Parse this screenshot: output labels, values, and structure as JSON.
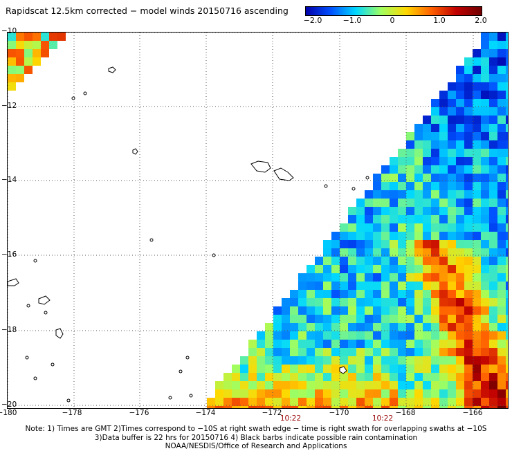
{
  "title": "Rapidscat 12.5km corrected − model winds 20150716 ascending",
  "colorbar": {
    "labels": [
      "−2.0",
      "−1.0",
      "0",
      "1.0",
      "2.0"
    ],
    "values": [
      -2.0,
      -1.0,
      0,
      1.0,
      2.0
    ],
    "colors": [
      "#0000aa",
      "#0050ff",
      "#00d8ff",
      "#a0ff60",
      "#ffd800",
      "#ff6000",
      "#c00000",
      "#700000"
    ]
  },
  "axes": {
    "x_ticks": [
      "−180",
      "−178",
      "−176",
      "−174",
      "−172",
      "−170",
      "−168",
      "−166"
    ],
    "y_ticks": [
      "−10",
      "−12",
      "−14",
      "−16",
      "−18",
      "−20"
    ],
    "lon_range": [
      -180,
      -164.8
    ],
    "lat_range": [
      -10,
      -20
    ]
  },
  "time_labels": [
    "10:22",
    "10:22"
  ],
  "footer": [
    "Note: 1) Times are GMT 2)Times correspond to −10S at right swath edge − time is right swath for overlapping swaths at −10S",
    "3)Data buffer is 22 hrs for 20150716 4) Black barbs indicate possible rain contamination",
    "NOAA/NESDIS/Office of Research and Applications"
  ]
}
